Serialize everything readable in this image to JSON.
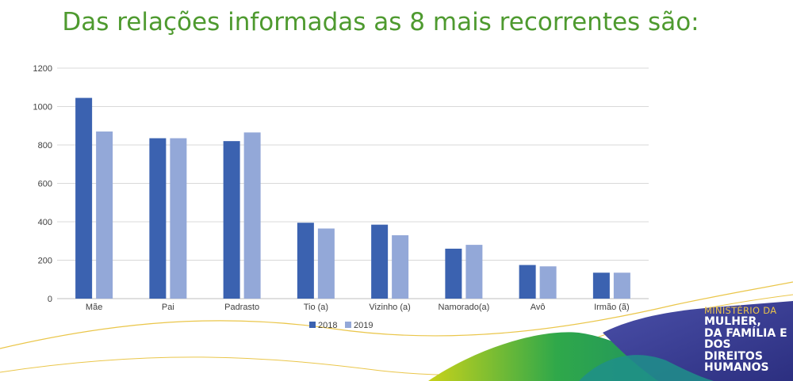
{
  "slide": {
    "title": "Das relações informadas as 8 mais recorrentes são:"
  },
  "logo": {
    "line1": "MINISTÉRIO DA",
    "line2": "MULHER,",
    "line3": "DA FAMÍLIA E",
    "line4": "DOS DIREITOS",
    "line5": "HUMANOS"
  },
  "colors": {
    "series_2018": "#3b62b0",
    "series_2019": "#93a8d8",
    "title": "#4e9a2f",
    "gridline": "#d9d9d9"
  },
  "chart_data": {
    "type": "bar",
    "categories": [
      "Mãe",
      "Pai",
      "Padrasto",
      "Tio (a)",
      "Vizinho (a)",
      "Namorado(a)",
      "Avô",
      "Irmão (ã)"
    ],
    "series": [
      {
        "name": "2018",
        "values": [
          1045,
          835,
          820,
          395,
          385,
          260,
          175,
          135
        ]
      },
      {
        "name": "2019",
        "values": [
          870,
          835,
          865,
          365,
          330,
          280,
          168,
          135
        ]
      }
    ],
    "ylim": [
      0,
      1200
    ],
    "yticks": [
      0,
      200,
      400,
      600,
      800,
      1000,
      1200
    ],
    "grid": true,
    "legend": "bottom"
  }
}
